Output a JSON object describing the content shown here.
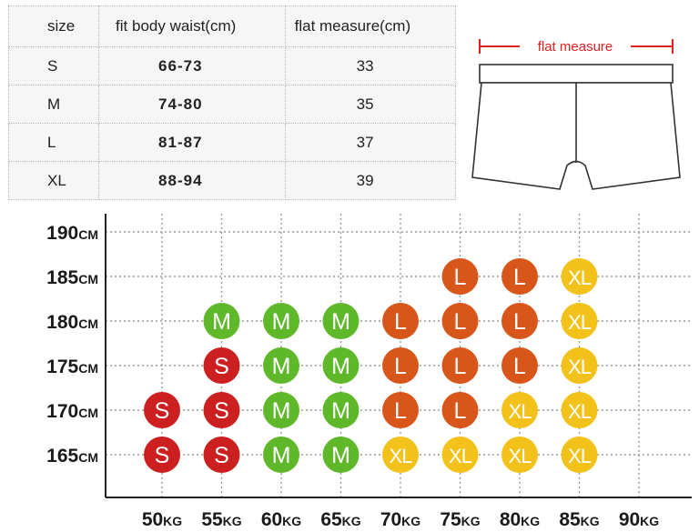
{
  "size_table": {
    "headers": [
      "size",
      "fit body waist(cm)",
      "flat measure(cm)"
    ],
    "rows": [
      [
        "S",
        "66-73",
        "33"
      ],
      [
        "M",
        "74-80",
        "35"
      ],
      [
        "L",
        "81-87",
        "37"
      ],
      [
        "XL",
        "88-94",
        "39"
      ]
    ]
  },
  "diagram": {
    "label": "flat measure",
    "accent_color": "#e02020"
  },
  "chart_data": {
    "type": "scatter",
    "title": "",
    "xlabel": "",
    "ylabel": "",
    "x_ticks": [
      {
        "num": "50",
        "unit": "KG"
      },
      {
        "num": "55",
        "unit": "KG"
      },
      {
        "num": "60",
        "unit": "KG"
      },
      {
        "num": "65",
        "unit": "KG"
      },
      {
        "num": "70",
        "unit": "KG"
      },
      {
        "num": "75",
        "unit": "KG"
      },
      {
        "num": "80",
        "unit": "KG"
      },
      {
        "num": "85",
        "unit": "KG"
      },
      {
        "num": "90",
        "unit": "KG"
      }
    ],
    "y_ticks": [
      {
        "num": "190",
        "unit": "CM"
      },
      {
        "num": "185",
        "unit": "CM"
      },
      {
        "num": "180",
        "unit": "CM"
      },
      {
        "num": "175",
        "unit": "CM"
      },
      {
        "num": "170",
        "unit": "CM"
      },
      {
        "num": "165",
        "unit": "CM"
      }
    ],
    "x_range": [
      50,
      90
    ],
    "y_range": [
      165,
      190
    ],
    "grid": true,
    "size_colors": {
      "S": "#cc1f1f",
      "M": "#5fb82a",
      "L": "#d9561b",
      "XL": "#f2c21b"
    },
    "points": [
      {
        "weight": 50,
        "height": 165,
        "size": "S"
      },
      {
        "weight": 50,
        "height": 170,
        "size": "S"
      },
      {
        "weight": 55,
        "height": 165,
        "size": "S"
      },
      {
        "weight": 55,
        "height": 170,
        "size": "S"
      },
      {
        "weight": 55,
        "height": 175,
        "size": "S"
      },
      {
        "weight": 55,
        "height": 180,
        "size": "M"
      },
      {
        "weight": 60,
        "height": 165,
        "size": "M"
      },
      {
        "weight": 60,
        "height": 170,
        "size": "M"
      },
      {
        "weight": 60,
        "height": 175,
        "size": "M"
      },
      {
        "weight": 60,
        "height": 180,
        "size": "M"
      },
      {
        "weight": 65,
        "height": 165,
        "size": "M"
      },
      {
        "weight": 65,
        "height": 170,
        "size": "M"
      },
      {
        "weight": 65,
        "height": 175,
        "size": "M"
      },
      {
        "weight": 65,
        "height": 180,
        "size": "M"
      },
      {
        "weight": 70,
        "height": 165,
        "size": "XL"
      },
      {
        "weight": 70,
        "height": 170,
        "size": "L"
      },
      {
        "weight": 70,
        "height": 175,
        "size": "L"
      },
      {
        "weight": 70,
        "height": 180,
        "size": "L"
      },
      {
        "weight": 75,
        "height": 165,
        "size": "XL"
      },
      {
        "weight": 75,
        "height": 170,
        "size": "L"
      },
      {
        "weight": 75,
        "height": 175,
        "size": "L"
      },
      {
        "weight": 75,
        "height": 180,
        "size": "L"
      },
      {
        "weight": 75,
        "height": 185,
        "size": "L"
      },
      {
        "weight": 80,
        "height": 165,
        "size": "XL"
      },
      {
        "weight": 80,
        "height": 170,
        "size": "XL"
      },
      {
        "weight": 80,
        "height": 175,
        "size": "L"
      },
      {
        "weight": 80,
        "height": 180,
        "size": "L"
      },
      {
        "weight": 80,
        "height": 185,
        "size": "L"
      },
      {
        "weight": 85,
        "height": 165,
        "size": "XL"
      },
      {
        "weight": 85,
        "height": 170,
        "size": "XL"
      },
      {
        "weight": 85,
        "height": 175,
        "size": "XL"
      },
      {
        "weight": 85,
        "height": 180,
        "size": "XL"
      },
      {
        "weight": 85,
        "height": 185,
        "size": "XL"
      }
    ]
  }
}
